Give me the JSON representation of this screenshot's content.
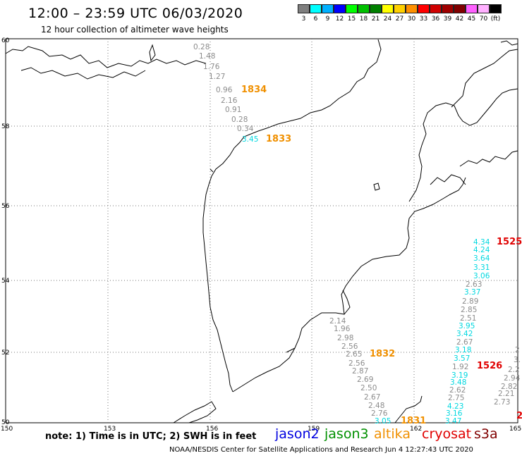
{
  "header": {
    "title": "12:00 – 23:59 UTC 06/03/2020",
    "subtitle": "12 hour collection of altimeter wave heights"
  },
  "scale": {
    "colors": [
      "#7f7f7f",
      "#00ffff",
      "#00b0ff",
      "#0000ff",
      "#00ff00",
      "#00c000",
      "#008000",
      "#ffff00",
      "#ffd000",
      "#ff9000",
      "#ff0000",
      "#d00000",
      "#a00000",
      "#800000",
      "#ff60ff",
      "#ffb0ff",
      "#000000"
    ],
    "labels": [
      "3",
      "6",
      "9",
      "12",
      "15",
      "18",
      "21",
      "24",
      "27",
      "30",
      "33",
      "36",
      "39",
      "42",
      "45",
      "70",
      "(ft)"
    ]
  },
  "axes": {
    "lat_labels": [
      "60",
      "58",
      "56",
      "54",
      "52",
      "50"
    ],
    "lon_labels": [
      "150",
      "153",
      "156",
      "159",
      "162",
      "165"
    ]
  },
  "tracks": [
    {
      "color": "#8c8c8c",
      "values": [
        "0.28",
        "1.48",
        "1.76",
        "1.27",
        "0.96",
        "2.16",
        "0.91",
        "0.28",
        "0.34"
      ]
    },
    {
      "color": "#00d8e0",
      "values": [
        "3.45"
      ]
    },
    {
      "color": "#8c8c8c",
      "values": [
        "2.14",
        "1.96",
        "2.98",
        "2.56",
        "2.65",
        "2.56",
        "2.87",
        "2.69",
        "2.50",
        "2.67",
        "2.48",
        "2.76"
      ]
    },
    {
      "color": "#00d8e0",
      "values": [
        "3.05"
      ]
    },
    {
      "color": "#00d8e0",
      "values": [
        "4.34",
        "4.24",
        "3.64",
        "3.31",
        "3.06"
      ]
    },
    {
      "color": "#8c8c8c",
      "values": [
        "2.63"
      ]
    },
    {
      "color": "#00d8e0",
      "values": [
        "3.37"
      ]
    },
    {
      "color": "#8c8c8c",
      "values": [
        "2.89",
        "2.85",
        "2.51"
      ]
    },
    {
      "color": "#00d8e0",
      "values": [
        "3.95",
        "3.42"
      ]
    },
    {
      "color": "#8c8c8c",
      "values": [
        "2.67"
      ]
    },
    {
      "color": "#00d8e0",
      "values": [
        "3.18",
        "3.57"
      ]
    },
    {
      "color": "#8c8c8c",
      "values": [
        "1.92"
      ]
    },
    {
      "color": "#00d8e0",
      "values": [
        "3.19",
        "3.48"
      ]
    },
    {
      "color": "#8c8c8c",
      "values": [
        "2.62",
        "2.75"
      ]
    },
    {
      "color": "#00d8e0",
      "values": [
        "4.23",
        "3.16",
        "3.47"
      ]
    },
    {
      "color": "#8c8c8c",
      "values": [
        "2",
        "3.",
        "2.2",
        "2.94",
        "2.82",
        "2.21",
        "2.73"
      ]
    }
  ],
  "pass_labels": [
    {
      "text": "1834",
      "color": "#f09000"
    },
    {
      "text": "1833",
      "color": "#f09000"
    },
    {
      "text": "1832",
      "color": "#f09000"
    },
    {
      "text": "1831",
      "color": "#f09000"
    },
    {
      "text": "1525",
      "color": "#e00000"
    },
    {
      "text": "1526",
      "color": "#e00000"
    },
    {
      "text": "2",
      "color": "#e00000"
    }
  ],
  "footer": {
    "note": "note: 1) Time is in UTC; 2) SWH is in feet",
    "legend": [
      {
        "label": "jason2",
        "color": "#0000e0"
      },
      {
        "label": "jason3",
        "color": "#009000"
      },
      {
        "label": "altika",
        "color": "#f09000"
      },
      {
        "label": "cryosat",
        "color": "#e00000"
      },
      {
        "label": "s3a",
        "color": "#800000"
      }
    ],
    "credit": "NOAA/NESDIS Center for Satellite Applications and Research    Jun  4 12:27:43 UTC 2020"
  }
}
